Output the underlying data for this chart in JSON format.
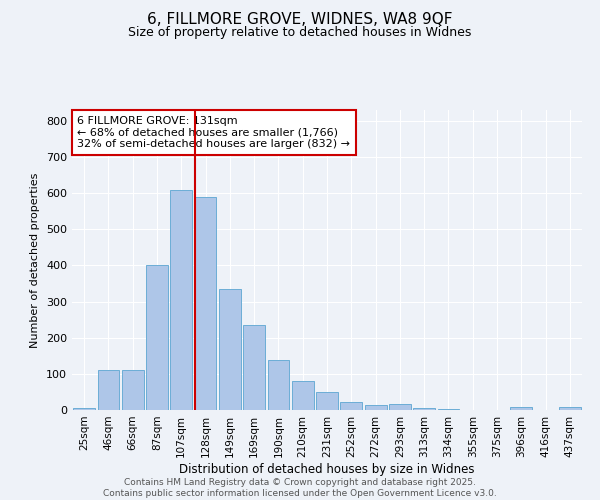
{
  "title_line1": "6, FILLMORE GROVE, WIDNES, WA8 9QF",
  "title_line2": "Size of property relative to detached houses in Widnes",
  "xlabel": "Distribution of detached houses by size in Widnes",
  "ylabel": "Number of detached properties",
  "bar_labels": [
    "25sqm",
    "46sqm",
    "66sqm",
    "87sqm",
    "107sqm",
    "128sqm",
    "149sqm",
    "169sqm",
    "190sqm",
    "210sqm",
    "231sqm",
    "252sqm",
    "272sqm",
    "293sqm",
    "313sqm",
    "334sqm",
    "355sqm",
    "375sqm",
    "396sqm",
    "416sqm",
    "437sqm"
  ],
  "bar_values": [
    5,
    110,
    110,
    400,
    610,
    590,
    335,
    235,
    138,
    80,
    50,
    22,
    15,
    17,
    5,
    3,
    0,
    0,
    7,
    0,
    8
  ],
  "bar_color": "#aec6e8",
  "bar_edge_color": "#6badd6",
  "red_line_index": 5,
  "annotation_text": "6 FILLMORE GROVE: 131sqm\n← 68% of detached houses are smaller (1,766)\n32% of semi-detached houses are larger (832) →",
  "annotation_box_color": "#ffffff",
  "annotation_box_edge": "#cc0000",
  "red_line_color": "#cc0000",
  "ylim": [
    0,
    830
  ],
  "yticks": [
    0,
    100,
    200,
    300,
    400,
    500,
    600,
    700,
    800
  ],
  "footer_text": "Contains HM Land Registry data © Crown copyright and database right 2025.\nContains public sector information licensed under the Open Government Licence v3.0.",
  "bg_color": "#eef2f8",
  "grid_color": "#ffffff",
  "title_fontsize": 11,
  "subtitle_fontsize": 9
}
